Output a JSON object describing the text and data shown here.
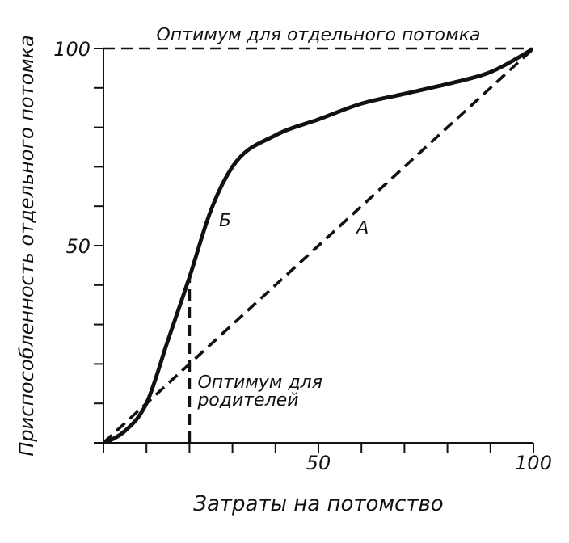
{
  "chart_data": {
    "type": "line",
    "xlabel": "Затраты на потомство",
    "ylabel": "Приспособленность отдельного потомка",
    "xlim": [
      0,
      100
    ],
    "ylim": [
      0,
      100
    ],
    "xticks": [
      {
        "value": 0,
        "label": null
      },
      {
        "value": 10,
        "label": null
      },
      {
        "value": 20,
        "label": null
      },
      {
        "value": 30,
        "label": null
      },
      {
        "value": 40,
        "label": null
      },
      50,
      {
        "value": 60,
        "label": null
      },
      {
        "value": 70,
        "label": null
      },
      {
        "value": 80,
        "label": null
      },
      {
        "value": 90,
        "label": null
      },
      100
    ],
    "yticks": [
      {
        "value": 0,
        "label": null
      },
      {
        "value": 10,
        "label": null
      },
      {
        "value": 20,
        "label": null
      },
      {
        "value": 30,
        "label": null
      },
      {
        "value": 40,
        "label": null
      },
      50,
      {
        "value": 60,
        "label": null
      },
      {
        "value": 70,
        "label": null
      },
      {
        "value": 80,
        "label": null
      },
      {
        "value": 90,
        "label": null
      },
      100
    ],
    "grid": false,
    "marker": "none",
    "series": [
      {
        "color": "#111111",
        "line_style": "solid",
        "x": [
          0,
          5,
          10,
          15,
          20,
          25,
          30,
          40,
          50,
          60,
          70,
          80,
          90,
          100
        ],
        "values": [
          0,
          3,
          10,
          26,
          42,
          59,
          70,
          78,
          82,
          86,
          88.5,
          91,
          94,
          100
        ]
      },
      {
        "color": "#111111",
        "line_style": "dashed",
        "x": [
          0,
          100
        ],
        "values": [
          0,
          100
        ]
      },
      {
        "color": "#111111",
        "line_style": "dashed",
        "x": [
          20,
          20
        ],
        "values": [
          0,
          42
        ]
      }
    ],
    "ref_lines": [
      {
        "axis": "y",
        "value": 100,
        "label": "Оптимум для отдельного потомка",
        "color": "#111111",
        "line_style": "dashed"
      }
    ],
    "annotations": [
      {
        "text": "Б",
        "x": 25,
        "y": 59
      },
      {
        "text": "А",
        "x": 57,
        "y": 57
      },
      {
        "text": "Оптимум для родителей",
        "x": 20,
        "y": 18
      }
    ]
  }
}
